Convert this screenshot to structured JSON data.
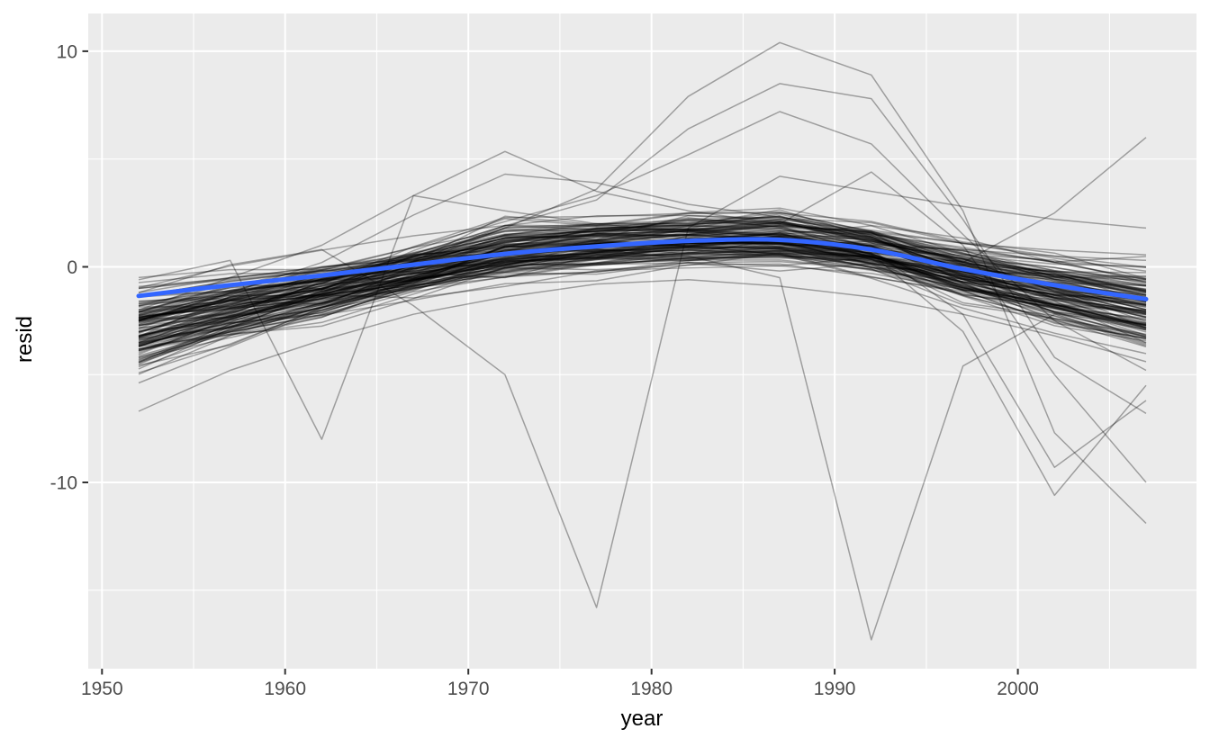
{
  "figure": {
    "kind": "ggplot-residuals-spaghetti-plot"
  },
  "colors": {
    "background": "#FFFFFF",
    "panel": "#EBEBEB",
    "grid": "#FFFFFF",
    "axis_text": "#4D4D4D",
    "tick_mark": "#333333",
    "axis_title": "#000000",
    "smooth": "#3366FF",
    "line": "#000000"
  },
  "chart_data": {
    "type": "line",
    "title": "",
    "xlabel": "year",
    "ylabel": "resid",
    "x_range": [
      1949.25,
      2009.75
    ],
    "y_range": [
      -18.64,
      11.75
    ],
    "x_ticks": [
      1950,
      1960,
      1970,
      1980,
      1990,
      2000
    ],
    "x_minor_ticks": [
      1955,
      1965,
      1975,
      1985,
      1995,
      2005
    ],
    "y_ticks": [
      10,
      0,
      -10
    ],
    "y_minor_ticks": [
      5,
      -5,
      -15
    ],
    "grid": true,
    "legend": "none",
    "years": [
      1952,
      1957,
      1962,
      1967,
      1972,
      1977,
      1982,
      1987,
      1992,
      1997,
      2002,
      2007
    ],
    "smooth": {
      "name": "smooth-trend",
      "color": "#3366FF",
      "values": [
        -1.35,
        -0.85,
        -0.4,
        0.1,
        0.6,
        0.95,
        1.2,
        1.25,
        0.8,
        -0.1,
        -0.85,
        -1.5
      ]
    },
    "highlight_series": [
      {
        "name": "deep-dip-1977",
        "values": [
          -1.2,
          0.1,
          0.8,
          -1.8,
          -5.0,
          -15.8,
          1.8,
          4.2,
          3.5,
          2.8,
          2.2,
          1.8
        ]
      },
      {
        "name": "deep-dip-1992",
        "values": [
          -2.2,
          -1.5,
          -0.9,
          -0.3,
          0.3,
          0.7,
          0.5,
          -0.5,
          -17.3,
          -4.6,
          -2.2,
          -3.6
        ]
      },
      {
        "name": "dip-1962",
        "values": [
          -0.6,
          0.3,
          -8.0,
          3.3,
          2.6,
          2.0,
          1.6,
          1.3,
          1.0,
          0.8,
          0.5,
          0.3
        ]
      },
      {
        "name": "peak-1987-main",
        "values": [
          -3.2,
          -2.0,
          -0.9,
          0.3,
          1.8,
          3.6,
          7.9,
          10.4,
          8.9,
          2.6,
          -7.7,
          -11.9
        ]
      },
      {
        "name": "peak-1987-b",
        "values": [
          -2.6,
          -1.4,
          -0.4,
          0.6,
          1.9,
          3.1,
          6.4,
          8.5,
          7.8,
          2.2,
          -4.2,
          -6.8
        ]
      },
      {
        "name": "peak-1987-c",
        "values": [
          -2.2,
          -1.1,
          -0.1,
          0.9,
          2.1,
          3.3,
          5.2,
          7.2,
          5.7,
          1.5,
          -2.5,
          -4.8
        ]
      },
      {
        "name": "peak-1972",
        "values": [
          -2.0,
          -0.5,
          1.0,
          3.3,
          5.35,
          3.5,
          2.6,
          2.0,
          1.5,
          0.9,
          0.2,
          -0.6
        ]
      },
      {
        "name": "peak-1972-b",
        "values": [
          -2.5,
          -1.2,
          0.2,
          2.4,
          4.3,
          3.9,
          2.9,
          2.3,
          1.7,
          1.1,
          0.4,
          -0.2
        ]
      },
      {
        "name": "v-dip-2002",
        "values": [
          -1.8,
          -1.2,
          -0.6,
          0.0,
          0.5,
          0.9,
          1.2,
          1.4,
          0.6,
          -3.0,
          -10.6,
          -5.5
        ]
      },
      {
        "name": "v-dip-2002-b",
        "values": [
          -1.4,
          -0.9,
          -0.4,
          0.2,
          0.6,
          1.0,
          1.3,
          1.5,
          0.8,
          -2.2,
          -9.3,
          -6.2
        ]
      },
      {
        "name": "slide-to-2007",
        "values": [
          -1.0,
          -0.6,
          -0.2,
          0.3,
          0.7,
          1.1,
          1.5,
          2.0,
          4.4,
          1.0,
          -5.0,
          -10.0
        ]
      },
      {
        "name": "rise-to-2007",
        "values": [
          -3.6,
          -2.6,
          -1.7,
          -0.9,
          -0.2,
          0.4,
          0.9,
          1.3,
          0.8,
          0.2,
          2.5,
          6.0
        ]
      },
      {
        "name": "low-start",
        "values": [
          -6.7,
          -4.8,
          -3.4,
          -2.2,
          -1.4,
          -0.8,
          -0.6,
          -0.9,
          -1.4,
          -2.2,
          -3.2,
          -4.4
        ]
      }
    ],
    "background_lines": {
      "count": 129,
      "seed": 42,
      "alpha": 0.33,
      "start_offset": {
        "center": -1.65,
        "spread": 2.3,
        "min": -5.5,
        "max": 2.45
      },
      "end_offset": {
        "center": -0.3,
        "spread": 2.4,
        "min": -4.9,
        "max": 2.6
      },
      "mid_spread": 1.6,
      "jitter": 0.5
    },
    "line_alpha": 0.33,
    "total_lines": 142
  }
}
